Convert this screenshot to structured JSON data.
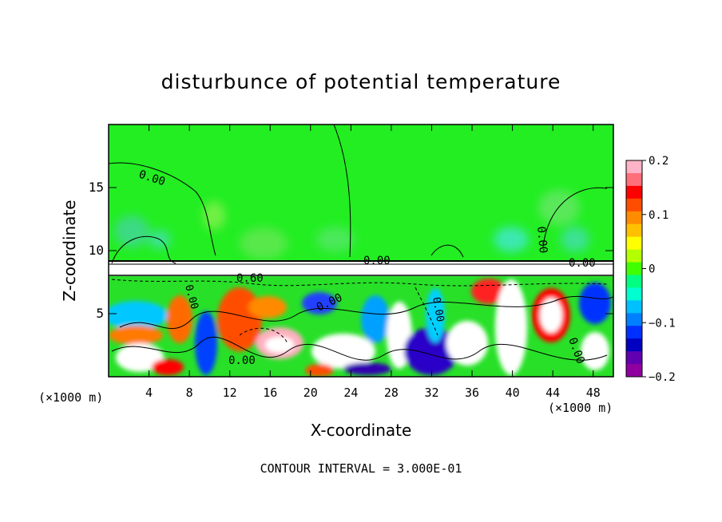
{
  "chart_data": {
    "type": "heatmap",
    "title": "disturbunce of potential temperature",
    "xlabel": "X-coordinate",
    "ylabel": "Z-coordinate",
    "x_unit_left": "(×1000 m)",
    "x_unit_right": "(×1000 m)",
    "xlim": [
      0,
      50
    ],
    "ylim": [
      0,
      20
    ],
    "xticks": [
      4,
      8,
      12,
      16,
      20,
      24,
      28,
      32,
      36,
      40,
      44,
      48
    ],
    "yticks": [
      5,
      10,
      15
    ],
    "colorbar": {
      "ticks": [
        0.2,
        0.1,
        0,
        -0.1,
        -0.2
      ],
      "tick_labels": [
        "0.2",
        "0.1",
        "0",
        "−0.1",
        "−0.2"
      ],
      "range": [
        -0.2,
        0.2
      ],
      "colors": [
        "#ffb3c6",
        "#ff6f7a",
        "#ff0000",
        "#ff4d00",
        "#ff8c00",
        "#ffc000",
        "#ffff00",
        "#b4ff00",
        "#40ff00",
        "#00ff80",
        "#00ffd0",
        "#00c0ff",
        "#0080ff",
        "#0030ff",
        "#0000c0",
        "#6000b0",
        "#9000a0"
      ]
    },
    "contour_labels": [
      "0.00",
      "0.00",
      "0.60",
      "0.00",
      "0.00",
      "0.00",
      "0.00",
      "0.00",
      "0.00",
      "0.00"
    ],
    "contour_interval_text": "CONTOUR INTERVAL = 3.000E-01"
  }
}
